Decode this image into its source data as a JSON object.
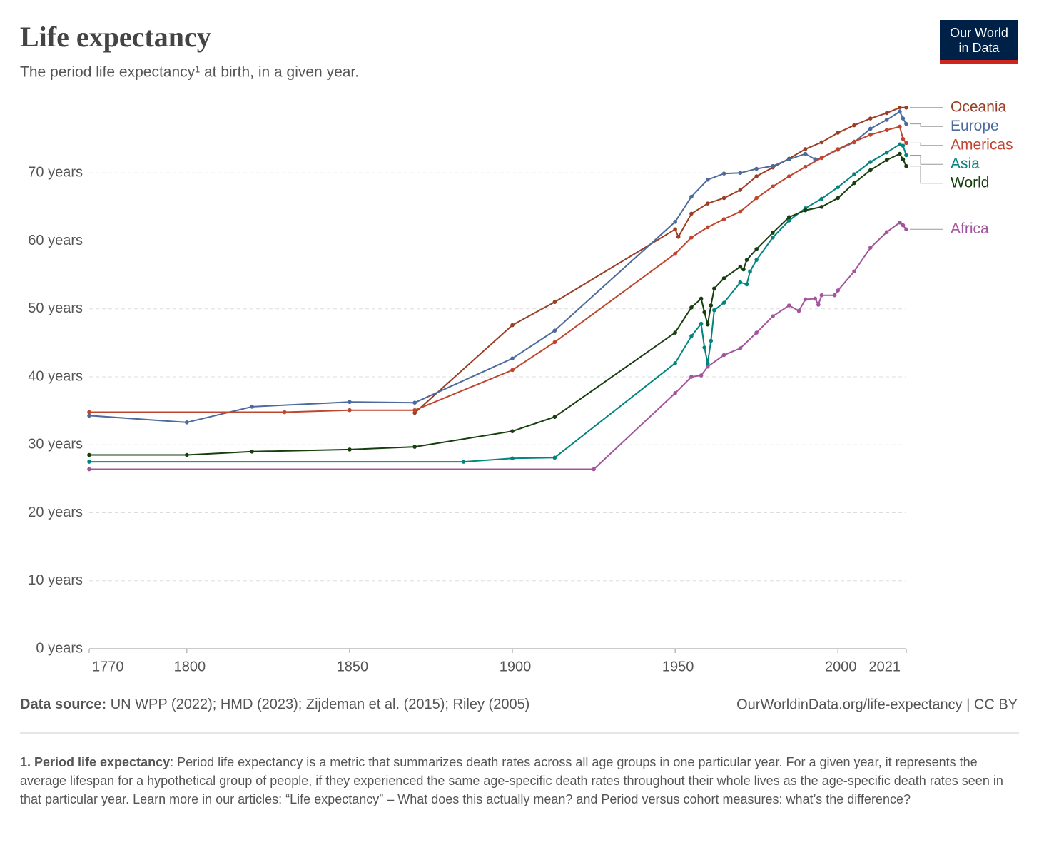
{
  "chart_data": {
    "type": "line",
    "title": "Life expectancy",
    "subtitle": "The period life expectancy¹ at birth, in a given year.",
    "logo": [
      "Our World",
      "in Data"
    ],
    "source_label": "Data source:",
    "source": "UN WPP (2022); HMD (2023); Zijdeman et al. (2015); Riley (2005)",
    "url": "OurWorldinData.org/life-expectancy | CC BY",
    "footnote_title": "1. Period life expectancy",
    "footnote_text": ": Period life expectancy is a metric that summarizes death rates across all age groups in one particular year. For a given year, it represents the average lifespan for a hypothetical group of people, if they experienced the same age-specific death rates throughout their whole lives as the age-specific death rates seen in that particular year. Learn more in our articles: “Life expectancy” – What does this actually mean? and Period versus cohort measures: what’s the difference?",
    "xlim": [
      1770,
      2021
    ],
    "xticks": [
      1770,
      1800,
      1850,
      1900,
      1950,
      2000,
      2021
    ],
    "ylim": [
      0,
      80
    ],
    "yticks": [
      {
        "value": 0,
        "label": "0 years"
      },
      {
        "value": 10,
        "label": "10 years"
      },
      {
        "value": 20,
        "label": "20 years"
      },
      {
        "value": 30,
        "label": "30 years"
      },
      {
        "value": 40,
        "label": "40 years"
      },
      {
        "value": 50,
        "label": "50 years"
      },
      {
        "value": 60,
        "label": "60 years"
      },
      {
        "value": 70,
        "label": "70 years"
      }
    ],
    "grid": true,
    "series": [
      {
        "name": "Oceania",
        "color": "#9a3e25",
        "x": [
          1870,
          1900,
          1913,
          1950,
          1951,
          1955,
          1960,
          1965,
          1970,
          1975,
          1980,
          1985,
          1990,
          1995,
          2000,
          2005,
          2010,
          2015,
          2019,
          2021
        ],
        "values": [
          34.7,
          47.6,
          51.0,
          61.7,
          60.6,
          64.0,
          65.5,
          66.3,
          67.5,
          69.5,
          70.8,
          72.1,
          73.5,
          74.5,
          75.9,
          77.0,
          78.0,
          78.8,
          79.6,
          79.6
        ]
      },
      {
        "name": "Europe",
        "color": "#4c6a9c",
        "x": [
          1770,
          1800,
          1820,
          1850,
          1870,
          1900,
          1913,
          1950,
          1955,
          1960,
          1965,
          1970,
          1975,
          1980,
          1985,
          1990,
          1993,
          1995,
          2000,
          2005,
          2010,
          2015,
          2019,
          2020,
          2021
        ],
        "values": [
          34.3,
          33.3,
          35.6,
          36.3,
          36.2,
          42.7,
          46.8,
          62.8,
          66.5,
          69.0,
          69.9,
          70.0,
          70.6,
          71.0,
          72.0,
          72.8,
          72.0,
          72.2,
          73.4,
          74.5,
          76.5,
          77.8,
          79.0,
          78.0,
          77.2
        ]
      },
      {
        "name": "Americas",
        "color": "#c0452f",
        "x": [
          1770,
          1830,
          1850,
          1870,
          1900,
          1913,
          1950,
          1955,
          1960,
          1965,
          1970,
          1975,
          1980,
          1985,
          1990,
          1995,
          2000,
          2005,
          2010,
          2015,
          2019,
          2020,
          2021
        ],
        "values": [
          34.8,
          34.8,
          35.1,
          35.1,
          41.0,
          45.1,
          58.1,
          60.5,
          62.0,
          63.2,
          64.3,
          66.3,
          68.0,
          69.5,
          70.9,
          72.2,
          73.5,
          74.6,
          75.6,
          76.3,
          76.8,
          75.0,
          74.4
        ]
      },
      {
        "name": "Asia",
        "color": "#00847e",
        "x": [
          1770,
          1885,
          1900,
          1913,
          1950,
          1955,
          1958,
          1959,
          1960,
          1961,
          1962,
          1965,
          1970,
          1972,
          1973,
          1975,
          1980,
          1985,
          1990,
          1995,
          2000,
          2005,
          2010,
          2015,
          2019,
          2020,
          2021
        ],
        "values": [
          27.5,
          27.5,
          28.0,
          28.1,
          42.0,
          46.0,
          47.8,
          44.3,
          42.0,
          45.3,
          49.8,
          50.9,
          53.9,
          53.6,
          55.5,
          57.2,
          60.5,
          63.0,
          64.8,
          66.2,
          67.9,
          69.8,
          71.6,
          73.0,
          74.2,
          74.0,
          72.6
        ]
      },
      {
        "name": "World",
        "color": "#163e0e",
        "x": [
          1770,
          1800,
          1820,
          1850,
          1870,
          1900,
          1913,
          1950,
          1955,
          1958,
          1959,
          1960,
          1961,
          1962,
          1965,
          1970,
          1971,
          1972,
          1975,
          1980,
          1985,
          1990,
          1995,
          2000,
          2005,
          2010,
          2015,
          2019,
          2020,
          2021
        ],
        "values": [
          28.5,
          28.5,
          29.0,
          29.3,
          29.7,
          32.0,
          34.1,
          46.5,
          50.2,
          51.5,
          49.5,
          47.7,
          50.5,
          53.0,
          54.5,
          56.2,
          55.8,
          57.2,
          58.8,
          61.2,
          63.5,
          64.5,
          65.0,
          66.3,
          68.5,
          70.4,
          71.9,
          72.8,
          72.0,
          71.0
        ]
      },
      {
        "name": "Africa",
        "color": "#a2559c",
        "x": [
          1770,
          1925,
          1950,
          1955,
          1958,
          1960,
          1965,
          1970,
          1975,
          1980,
          1985,
          1988,
          1990,
          1993,
          1994,
          1995,
          1999,
          2000,
          2005,
          2010,
          2015,
          2019,
          2020,
          2021
        ],
        "values": [
          26.4,
          26.4,
          37.6,
          40.0,
          40.2,
          41.5,
          43.2,
          44.2,
          46.5,
          48.9,
          50.5,
          49.7,
          51.4,
          51.5,
          50.6,
          52.0,
          52.0,
          52.7,
          55.5,
          59.0,
          61.3,
          62.7,
          62.3,
          61.7
        ]
      }
    ]
  }
}
